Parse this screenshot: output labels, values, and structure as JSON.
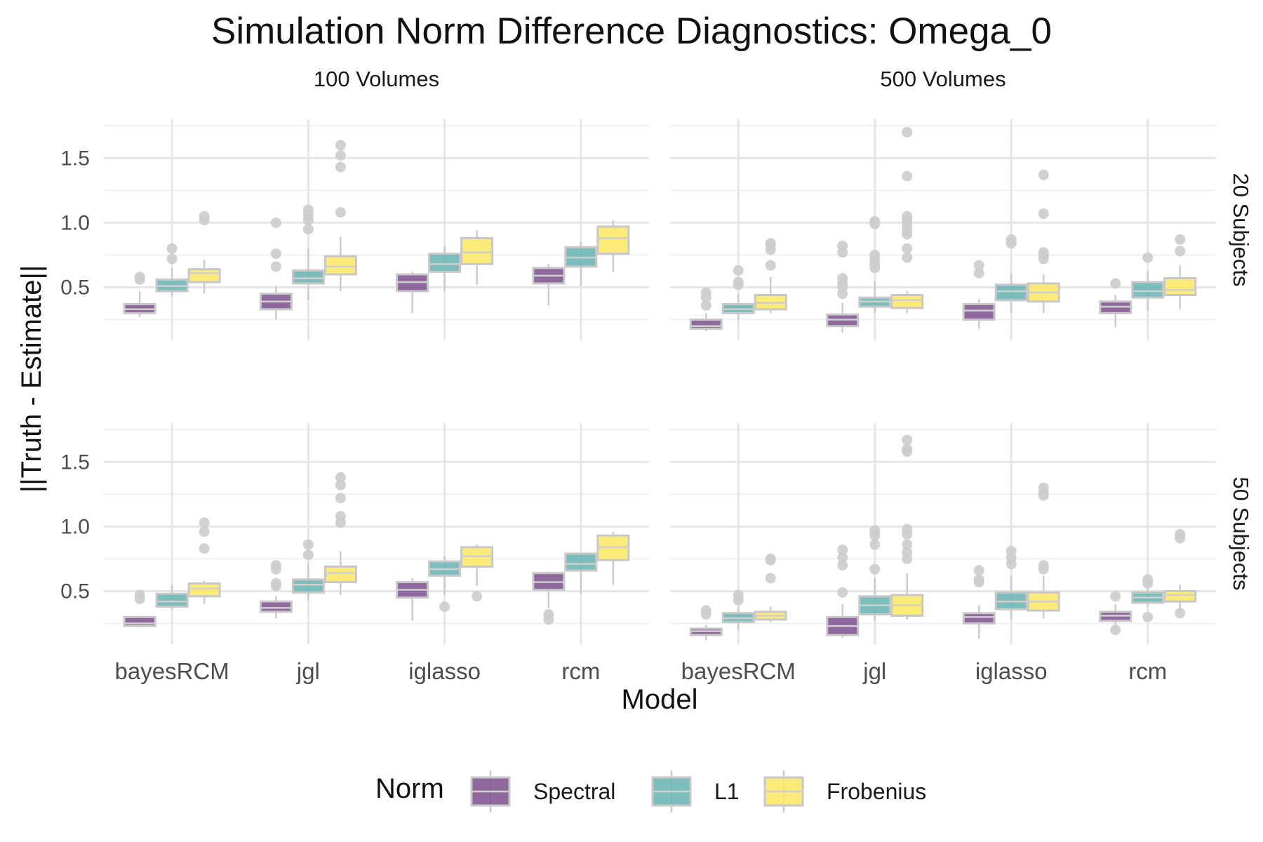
{
  "title": "Simulation Norm Difference Diagnostics: Omega_0",
  "chart_data": {
    "type": "boxplot",
    "title": "Simulation Norm Difference Diagnostics: Omega_0",
    "xlabel": "Model",
    "ylabel": "||Truth - Estimate||",
    "ylim": [
      0.09,
      1.8
    ],
    "yticks": [
      0.5,
      1.0,
      1.5
    ],
    "ytick_labels": [
      "0.5",
      "1.0",
      "1.5"
    ],
    "categories": [
      "bayesRCM",
      "jgl",
      "iglasso",
      "rcm"
    ],
    "col_facets": [
      "100 Volumes",
      "500 Volumes"
    ],
    "row_facets": [
      "20 Subjects",
      "50 Subjects"
    ],
    "legend": {
      "title": "Norm",
      "position": "bottom",
      "entries": [
        {
          "name": "Spectral",
          "color": "#7b4f8c"
        },
        {
          "name": "L1",
          "color": "#66b2b0"
        },
        {
          "name": "Frobenius",
          "color": "#fce760"
        }
      ]
    },
    "outlier_color": "#cccccc",
    "box_outline_color": "#c8c8c8",
    "grid": true,
    "panels": [
      {
        "volumes": "100 Volumes",
        "subjects": "20 Subjects",
        "groups": {
          "bayesRCM": {
            "Spectral": {
              "min": 0.27,
              "q1": 0.3,
              "median": 0.33,
              "q3": 0.37,
              "max": 0.47,
              "outliers": [
                0.56,
                0.58
              ]
            },
            "L1": {
              "min": 0.43,
              "q1": 0.47,
              "median": 0.51,
              "q3": 0.56,
              "max": 0.65,
              "outliers": [
                0.72,
                0.8
              ]
            },
            "Frobenius": {
              "min": 0.45,
              "q1": 0.54,
              "median": 0.61,
              "q3": 0.64,
              "max": 0.71,
              "outliers": [
                1.02,
                1.05
              ]
            }
          },
          "jgl": {
            "Spectral": {
              "min": 0.25,
              "q1": 0.33,
              "median": 0.39,
              "q3": 0.45,
              "max": 0.51,
              "outliers": [
                0.66,
                0.76,
                1.0
              ]
            },
            "L1": {
              "min": 0.4,
              "q1": 0.53,
              "median": 0.57,
              "q3": 0.63,
              "max": 0.8,
              "outliers": [
                0.95,
                1.02,
                1.06,
                1.1
              ]
            },
            "Frobenius": {
              "min": 0.47,
              "q1": 0.6,
              "median": 0.66,
              "q3": 0.74,
              "max": 0.89,
              "outliers": [
                1.08,
                1.43,
                1.52,
                1.6
              ]
            }
          },
          "iglasso": {
            "Spectral": {
              "min": 0.3,
              "q1": 0.47,
              "median": 0.54,
              "q3": 0.6,
              "max": 0.62,
              "outliers": []
            },
            "L1": {
              "min": 0.47,
              "q1": 0.62,
              "median": 0.68,
              "q3": 0.76,
              "max": 0.82,
              "outliers": []
            },
            "Frobenius": {
              "min": 0.52,
              "q1": 0.68,
              "median": 0.77,
              "q3": 0.88,
              "max": 0.94,
              "outliers": []
            }
          },
          "rcm": {
            "Spectral": {
              "min": 0.36,
              "q1": 0.53,
              "median": 0.59,
              "q3": 0.65,
              "max": 0.68,
              "outliers": []
            },
            "L1": {
              "min": 0.51,
              "q1": 0.66,
              "median": 0.73,
              "q3": 0.81,
              "max": 0.85,
              "outliers": []
            },
            "Frobenius": {
              "min": 0.62,
              "q1": 0.76,
              "median": 0.88,
              "q3": 0.97,
              "max": 1.02,
              "outliers": []
            }
          }
        }
      },
      {
        "volumes": "500 Volumes",
        "subjects": "20 Subjects",
        "groups": {
          "bayesRCM": {
            "Spectral": {
              "min": 0.16,
              "q1": 0.18,
              "median": 0.2,
              "q3": 0.25,
              "max": 0.3,
              "outliers": [
                0.36,
                0.42,
                0.46
              ]
            },
            "L1": {
              "min": 0.25,
              "q1": 0.3,
              "median": 0.33,
              "q3": 0.37,
              "max": 0.45,
              "outliers": [
                0.52,
                0.54,
                0.63
              ]
            },
            "Frobenius": {
              "min": 0.3,
              "q1": 0.33,
              "median": 0.38,
              "q3": 0.44,
              "max": 0.58,
              "outliers": [
                0.67,
                0.79,
                0.83,
                0.84
              ]
            }
          },
          "jgl": {
            "Spectral": {
              "min": 0.15,
              "q1": 0.2,
              "median": 0.25,
              "q3": 0.29,
              "max": 0.38,
              "outliers": [
                0.45,
                0.5,
                0.53,
                0.57,
                0.77,
                0.82
              ]
            },
            "L1": {
              "min": 0.3,
              "q1": 0.35,
              "median": 0.39,
              "q3": 0.42,
              "max": 0.55,
              "outliers": [
                0.65,
                0.68,
                0.72,
                0.75,
                0.99,
                1.01
              ]
            },
            "Frobenius": {
              "min": 0.3,
              "q1": 0.34,
              "median": 0.4,
              "q3": 0.44,
              "max": 0.47,
              "outliers": [
                0.73,
                0.8,
                0.91,
                0.94,
                0.98,
                1.02,
                1.05,
                1.36,
                1.7
              ]
            }
          },
          "iglasso": {
            "Spectral": {
              "min": 0.18,
              "q1": 0.25,
              "median": 0.32,
              "q3": 0.37,
              "max": 0.41,
              "outliers": [
                0.61,
                0.67
              ]
            },
            "L1": {
              "min": 0.3,
              "q1": 0.4,
              "median": 0.47,
              "q3": 0.52,
              "max": 0.61,
              "outliers": [
                0.84,
                0.87
              ]
            },
            "Frobenius": {
              "min": 0.3,
              "q1": 0.39,
              "median": 0.46,
              "q3": 0.53,
              "max": 0.6,
              "outliers": [
                0.72,
                0.75,
                0.77,
                1.07,
                1.37
              ]
            }
          },
          "rcm": {
            "Spectral": {
              "min": 0.19,
              "q1": 0.3,
              "median": 0.35,
              "q3": 0.39,
              "max": 0.44,
              "outliers": [
                0.53
              ]
            },
            "L1": {
              "min": 0.32,
              "q1": 0.42,
              "median": 0.47,
              "q3": 0.54,
              "max": 0.62,
              "outliers": [
                0.73
              ]
            },
            "Frobenius": {
              "min": 0.33,
              "q1": 0.44,
              "median": 0.48,
              "q3": 0.57,
              "max": 0.67,
              "outliers": [
                0.78,
                0.87
              ]
            }
          }
        }
      },
      {
        "volumes": "100 Volumes",
        "subjects": "50 Subjects",
        "groups": {
          "bayesRCM": {
            "Spectral": {
              "min": 0.22,
              "q1": 0.23,
              "median": 0.25,
              "q3": 0.3,
              "max": 0.31,
              "outliers": [
                0.44,
                0.47
              ]
            },
            "L1": {
              "min": 0.36,
              "q1": 0.38,
              "median": 0.42,
              "q3": 0.48,
              "max": 0.55,
              "outliers": []
            },
            "Frobenius": {
              "min": 0.4,
              "q1": 0.46,
              "median": 0.52,
              "q3": 0.56,
              "max": 0.58,
              "outliers": [
                0.83,
                0.96,
                1.03
              ]
            }
          },
          "jgl": {
            "Spectral": {
              "min": 0.29,
              "q1": 0.34,
              "median": 0.37,
              "q3": 0.42,
              "max": 0.46,
              "outliers": [
                0.54,
                0.56,
                0.67,
                0.7
              ]
            },
            "L1": {
              "min": 0.43,
              "q1": 0.49,
              "median": 0.55,
              "q3": 0.59,
              "max": 0.72,
              "outliers": [
                0.78,
                0.86
              ]
            },
            "Frobenius": {
              "min": 0.47,
              "q1": 0.57,
              "median": 0.64,
              "q3": 0.69,
              "max": 0.81,
              "outliers": [
                1.03,
                1.08,
                1.22,
                1.32,
                1.38
              ]
            }
          },
          "iglasso": {
            "Spectral": {
              "min": 0.27,
              "q1": 0.45,
              "median": 0.51,
              "q3": 0.57,
              "max": 0.6,
              "outliers": []
            },
            "L1": {
              "min": 0.47,
              "q1": 0.62,
              "median": 0.67,
              "q3": 0.73,
              "max": 0.77,
              "outliers": [
                0.38
              ]
            },
            "Frobenius": {
              "min": 0.54,
              "q1": 0.69,
              "median": 0.77,
              "q3": 0.84,
              "max": 0.86,
              "outliers": [
                0.46
              ]
            }
          },
          "rcm": {
            "Spectral": {
              "min": 0.37,
              "q1": 0.51,
              "median": 0.57,
              "q3": 0.64,
              "max": 0.65,
              "outliers": [
                0.28,
                0.32
              ]
            },
            "L1": {
              "min": 0.48,
              "q1": 0.66,
              "median": 0.71,
              "q3": 0.79,
              "max": 0.8,
              "outliers": []
            },
            "Frobenius": {
              "min": 0.55,
              "q1": 0.74,
              "median": 0.84,
              "q3": 0.93,
              "max": 0.96,
              "outliers": []
            }
          }
        }
      },
      {
        "volumes": "500 Volumes",
        "subjects": "50 Subjects",
        "groups": {
          "bayesRCM": {
            "Spectral": {
              "min": 0.12,
              "q1": 0.16,
              "median": 0.19,
              "q3": 0.21,
              "max": 0.24,
              "outliers": [
                0.32,
                0.35
              ]
            },
            "L1": {
              "min": 0.2,
              "q1": 0.26,
              "median": 0.29,
              "q3": 0.33,
              "max": 0.38,
              "outliers": [
                0.43,
                0.47
              ]
            },
            "Frobenius": {
              "min": 0.26,
              "q1": 0.28,
              "median": 0.31,
              "q3": 0.34,
              "max": 0.38,
              "outliers": [
                0.6,
                0.74,
                0.75
              ]
            }
          },
          "jgl": {
            "Spectral": {
              "min": 0.14,
              "q1": 0.16,
              "median": 0.23,
              "q3": 0.3,
              "max": 0.4,
              "outliers": [
                0.49,
                0.7,
                0.76,
                0.82
              ]
            },
            "L1": {
              "min": 0.27,
              "q1": 0.32,
              "median": 0.39,
              "q3": 0.46,
              "max": 0.6,
              "outliers": [
                0.67,
                0.86,
                0.93,
                0.97
              ]
            },
            "Frobenius": {
              "min": 0.28,
              "q1": 0.31,
              "median": 0.39,
              "q3": 0.47,
              "max": 0.64,
              "outliers": [
                0.75,
                0.8,
                0.86,
                0.94,
                0.98,
                1.58,
                1.6,
                1.67
              ]
            }
          },
          "iglasso": {
            "Spectral": {
              "min": 0.13,
              "q1": 0.25,
              "median": 0.3,
              "q3": 0.33,
              "max": 0.39,
              "outliers": [
                0.57,
                0.59,
                0.66
              ]
            },
            "L1": {
              "min": 0.28,
              "q1": 0.36,
              "median": 0.42,
              "q3": 0.49,
              "max": 0.62,
              "outliers": [
                0.71,
                0.76,
                0.81
              ]
            },
            "Frobenius": {
              "min": 0.29,
              "q1": 0.35,
              "median": 0.42,
              "q3": 0.49,
              "max": 0.62,
              "outliers": [
                0.67,
                0.7,
                1.24,
                1.26,
                1.3
              ]
            }
          },
          "rcm": {
            "Spectral": {
              "min": 0.2,
              "q1": 0.27,
              "median": 0.31,
              "q3": 0.34,
              "max": 0.4,
              "outliers": [
                0.2,
                0.46
              ]
            },
            "L1": {
              "min": 0.38,
              "q1": 0.41,
              "median": 0.45,
              "q3": 0.49,
              "max": 0.52,
              "outliers": [
                0.3,
                0.56,
                0.59
              ]
            },
            "Frobenius": {
              "min": 0.33,
              "q1": 0.42,
              "median": 0.47,
              "q3": 0.5,
              "max": 0.55,
              "outliers": [
                0.33,
                0.91,
                0.94
              ]
            }
          }
        }
      }
    ]
  }
}
